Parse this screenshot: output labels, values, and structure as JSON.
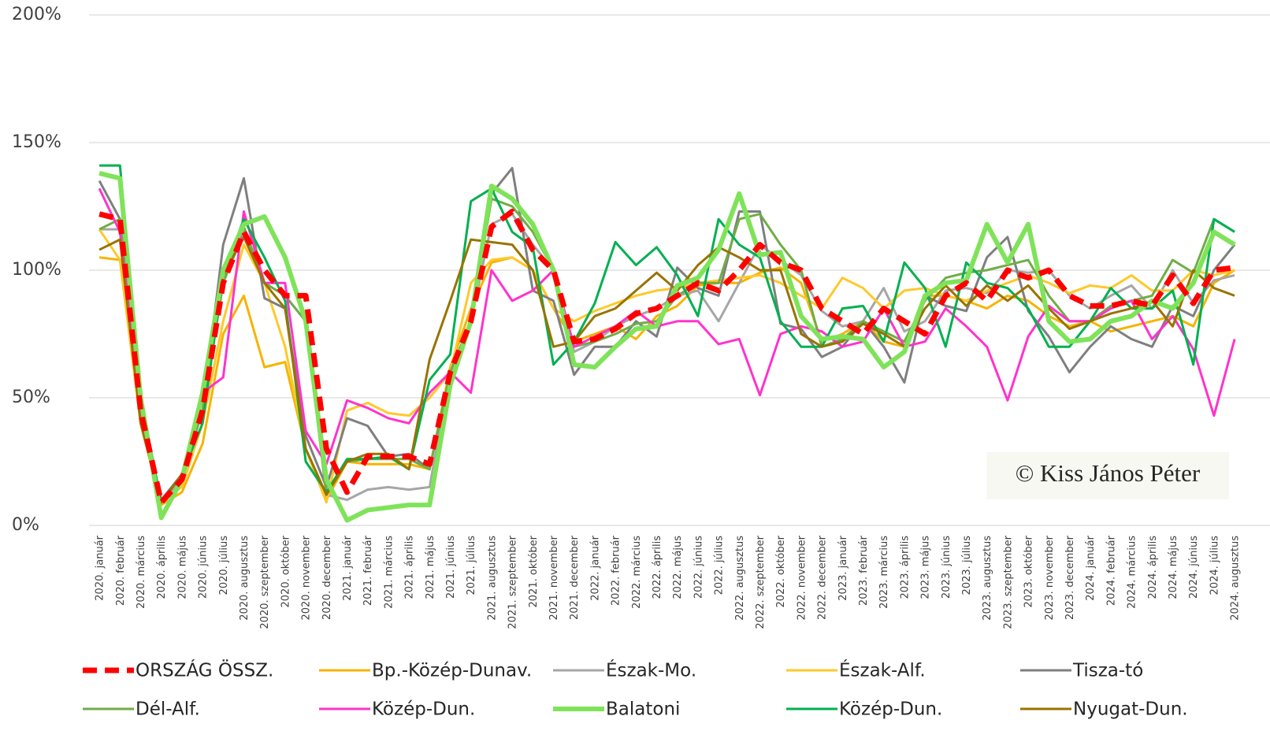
{
  "chart_data": {
    "type": "line",
    "annotation": "© Kiss János Péter",
    "categories": [
      "2020. január",
      "2020. február",
      "2020. március",
      "2020. április",
      "2020. május",
      "2020. június",
      "2020. július",
      "2020. augusztus",
      "2020. szeptember",
      "2020. október",
      "2020. november",
      "2020. december",
      "2021. január",
      "2021. február",
      "2021. március",
      "2021. április",
      "2021. május",
      "2021. június",
      "2021. július",
      "2021. augusztus",
      "2021. szeptember",
      "2021. október",
      "2021. november",
      "2021. december",
      "2022. január",
      "2022. február",
      "2022. március",
      "2022. április",
      "2022. május",
      "2022. június",
      "2022. július",
      "2022. augusztus",
      "2022. szeptember",
      "2022. október",
      "2022. november",
      "2022. december",
      "2023. január",
      "2023. február",
      "2023. március",
      "2023. április",
      "2023. május",
      "2023. június",
      "2023. július",
      "2023. augusztus",
      "2023. szeptember",
      "2023. október",
      "2023. november",
      "2023. december",
      "2024. január",
      "2024. február",
      "2024. március",
      "2024. április",
      "2024. május",
      "2024. június",
      "2024. július",
      "2024. augusztus"
    ],
    "ylim": [
      0,
      200
    ],
    "yticks": [
      {
        "value": 0,
        "label": "0%"
      },
      {
        "value": 50,
        "label": "50%"
      },
      {
        "value": 100,
        "label": "100%"
      },
      {
        "value": 150,
        "label": "150%"
      },
      {
        "value": 200,
        "label": "200%"
      }
    ],
    "grid": true,
    "legend": "bottom",
    "series": [
      {
        "name": "ORSZÁG ÖSSZ.",
        "color": "#ff0000",
        "values": [
          122,
          120,
          45,
          9,
          18,
          45,
          95,
          115,
          100,
          90,
          90,
          30,
          13,
          27,
          27,
          27,
          24,
          60,
          80,
          117,
          123,
          108,
          100,
          72,
          73,
          77,
          83,
          85,
          90,
          95,
          92,
          100,
          110,
          103,
          100,
          85,
          80,
          75,
          85,
          80,
          75,
          90,
          95,
          88,
          100,
          97,
          100,
          90,
          86,
          86,
          88,
          86,
          98,
          87,
          100,
          101
        ]
      },
      {
        "name": "Bp.-Közép-Dunav.",
        "color": "#f5b400",
        "values": [
          105,
          104,
          40,
          8,
          13,
          32,
          75,
          90,
          62,
          64,
          30,
          10,
          25,
          24,
          24,
          24,
          22,
          62,
          85,
          103,
          105,
          100,
          85,
          72,
          75,
          78,
          73,
          82,
          86,
          94,
          95,
          95,
          99,
          101,
          95,
          72,
          75,
          80,
          72,
          70,
          90,
          90,
          88,
          85,
          90,
          88,
          82,
          78,
          80,
          76,
          78,
          80,
          82,
          78,
          95,
          100
        ]
      },
      {
        "name": "Észak-Mo.",
        "color": "#a6a6a6",
        "values": [
          116,
          116,
          45,
          9,
          18,
          45,
          95,
          115,
          95,
          90,
          80,
          12,
          10,
          14,
          15,
          14,
          15,
          60,
          80,
          118,
          122,
          110,
          100,
          68,
          72,
          78,
          82,
          85,
          90,
          92,
          80,
          95,
          110,
          104,
          98,
          84,
          78,
          80,
          93,
          76,
          80,
          92,
          93,
          91,
          100,
          99,
          100,
          90,
          85,
          90,
          94,
          85,
          100,
          87,
          96,
          98
        ]
      },
      {
        "name": "Észak-Alf.",
        "color": "#ffc82a",
        "values": [
          116,
          104,
          40,
          10,
          15,
          40,
          80,
          110,
          95,
          70,
          30,
          9,
          45,
          48,
          44,
          43,
          50,
          60,
          95,
          104,
          105,
          100,
          85,
          80,
          84,
          87,
          90,
          92,
          93,
          95,
          96,
          97,
          98,
          95,
          90,
          85,
          97,
          93,
          85,
          92,
          93,
          90,
          88,
          92,
          95,
          98,
          95,
          91,
          94,
          93,
          98,
          92,
          92,
          100,
          98,
          100
        ]
      },
      {
        "name": "Tisza-tó",
        "color": "#7f7f7f",
        "values": [
          135,
          120,
          45,
          10,
          20,
          45,
          110,
          136,
          89,
          85,
          35,
          15,
          42,
          39,
          27,
          28,
          22,
          60,
          80,
          130,
          140,
          92,
          88,
          59,
          70,
          70,
          80,
          74,
          101,
          93,
          90,
          123,
          123,
          79,
          77,
          66,
          70,
          80,
          70,
          56,
          90,
          86,
          84,
          105,
          113,
          84,
          74,
          60,
          70,
          78,
          73,
          70,
          86,
          82,
          100,
          110
        ]
      },
      {
        "name": "Dél-Alf.",
        "color": "#70ad47",
        "values": [
          116,
          120,
          45,
          9,
          20,
          45,
          95,
          117,
          95,
          90,
          80,
          12,
          25,
          26,
          26,
          26,
          22,
          60,
          80,
          128,
          125,
          115,
          100,
          70,
          72,
          75,
          79,
          80,
          90,
          95,
          95,
          120,
          122,
          110,
          100,
          70,
          73,
          80,
          76,
          72,
          88,
          97,
          99,
          100,
          102,
          104,
          90,
          80,
          80,
          86,
          88,
          90,
          104,
          99,
          120,
          115
        ]
      },
      {
        "name": "Közép-Dun.",
        "color": "#ff33cc",
        "values": [
          132,
          115,
          45,
          9,
          20,
          52,
          58,
          123,
          95,
          95,
          37,
          24,
          49,
          46,
          42,
          40,
          52,
          60,
          52,
          100,
          88,
          92,
          100,
          70,
          74,
          78,
          84,
          78,
          80,
          80,
          71,
          73,
          51,
          75,
          78,
          76,
          70,
          72,
          85,
          70,
          72,
          85,
          78,
          70,
          49,
          74,
          86,
          80,
          80,
          85,
          88,
          73,
          82,
          69,
          43,
          73
        ]
      },
      {
        "name": "Balatoni",
        "color": "#7fe35a",
        "values": [
          138,
          136,
          50,
          3,
          18,
          52,
          100,
          118,
          121,
          105,
          80,
          18,
          2,
          6,
          7,
          8,
          8,
          55,
          80,
          133,
          128,
          118,
          100,
          63,
          62,
          70,
          77,
          78,
          94,
          97,
          108,
          130,
          106,
          107,
          82,
          73,
          74,
          73,
          62,
          68,
          90,
          95,
          96,
          118,
          103,
          118,
          80,
          72,
          73,
          80,
          82,
          88,
          85,
          95,
          115,
          110
        ]
      },
      {
        "name": "Közép-Dun.",
        "color": "#00b050",
        "values": [
          141,
          141,
          50,
          9,
          20,
          40,
          98,
          120,
          105,
          88,
          25,
          13,
          26,
          26,
          27,
          22,
          57,
          67,
          127,
          132,
          115,
          109,
          63,
          72,
          87,
          111,
          102,
          109,
          98,
          82,
          120,
          110,
          105,
          80,
          70,
          70,
          85,
          86,
          72,
          103,
          93,
          70,
          103,
          95,
          93,
          85,
          70,
          70,
          80,
          93,
          85,
          85,
          92,
          63,
          120,
          115
        ]
      },
      {
        "name": "Nyugat-Dun.",
        "color": "#997300",
        "values": [
          108,
          112,
          40,
          9,
          20,
          50,
          98,
          113,
          95,
          85,
          30,
          12,
          25,
          28,
          28,
          22,
          65,
          88,
          112,
          111,
          110,
          100,
          70,
          72,
          82,
          85,
          92,
          99,
          92,
          102,
          109,
          105,
          100,
          100,
          75,
          70,
          72,
          79,
          75,
          70,
          85,
          94,
          86,
          94,
          88,
          94,
          85,
          77,
          80,
          83,
          85,
          88,
          78,
          100,
          93,
          90
        ]
      }
    ]
  }
}
